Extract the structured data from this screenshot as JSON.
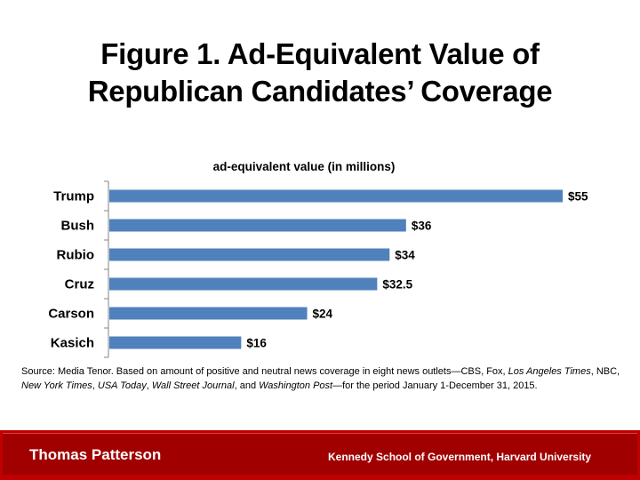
{
  "title_line1": "Figure 1. Ad-Equivalent Value of",
  "title_line2": "Republican Candidates’ Coverage",
  "chart_data": {
    "type": "bar",
    "orientation": "horizontal",
    "title": "ad-equivalent value (in millions)",
    "xlabel": "",
    "ylabel": "",
    "xlim": [
      0,
      55
    ],
    "grid": false,
    "categories": [
      "Trump",
      "Bush",
      "Rubio",
      "Cruz",
      "Carson",
      "Kasich"
    ],
    "values": [
      55,
      36,
      34,
      32.5,
      24,
      16
    ],
    "data_labels": [
      "$55",
      "$36",
      "$34",
      "$32.5",
      "$24",
      "$16"
    ],
    "bar_color": "#4f81bd"
  },
  "source": {
    "prefix": "Source: Media Tenor. Based on amount of positive and neutral news coverage in eight news outlets—CBS, Fox, ",
    "outlet1": "Los Angeles Times",
    "sep1": ", NBC, ",
    "outlet2": "New York Times",
    "sep2": ", ",
    "outlet3": "USA Today",
    "sep3": ", ",
    "outlet4": "Wall Street Journal",
    "sep4": ", and ",
    "outlet5": "Washington Post",
    "suffix": "—for the period January 1-December 31, 2015."
  },
  "footer": {
    "author": "Thomas Patterson",
    "affiliation": "Kennedy School of Government, Harvard University",
    "bg_color": "#c00000"
  }
}
